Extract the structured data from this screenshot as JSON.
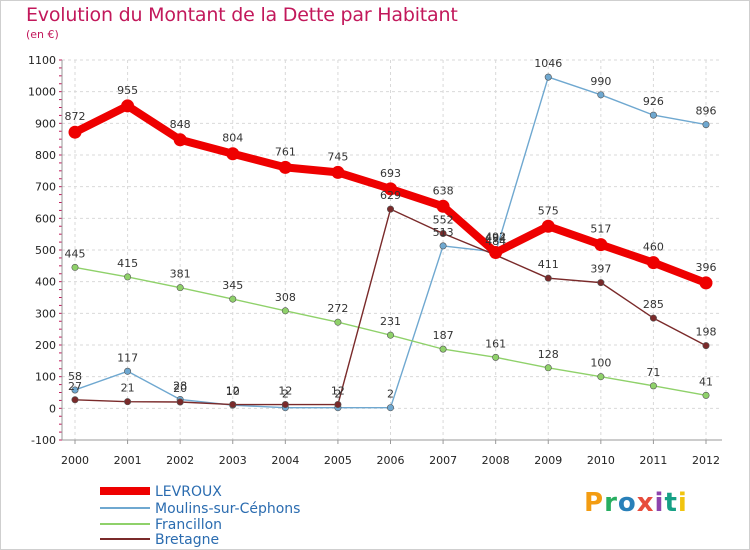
{
  "title": "Evolution du Montant de la Dette par Habitant",
  "subtitle": "(en €)",
  "brand": {
    "text": "Proxiti",
    "colors": [
      "#f39c12",
      "#27ae60",
      "#2980b9",
      "#e74c3c",
      "#8e44ad",
      "#16a085",
      "#f1c40f"
    ]
  },
  "chart_data": {
    "type": "line",
    "x": [
      "2000",
      "2001",
      "2002",
      "2003",
      "2004",
      "2005",
      "2006",
      "2007",
      "2008",
      "2009",
      "2010",
      "2011",
      "2012"
    ],
    "ylim": [
      -100,
      1100
    ],
    "yticks": [
      "-100",
      "0",
      "100",
      "200",
      "300",
      "400",
      "500",
      "600",
      "700",
      "800",
      "900",
      "1000",
      "1100"
    ],
    "grid": true,
    "legend_position": "bottom-left",
    "series": [
      {
        "name": "LEVROUX",
        "color": "#ee0000",
        "values": [
          872,
          955,
          848,
          804,
          761,
          745,
          693,
          638,
          492,
          575,
          517,
          460,
          396
        ],
        "labels": [
          "872",
          "955",
          "848",
          "804",
          "761",
          "745",
          "693",
          "638",
          "492",
          "575",
          "517",
          "460",
          "396"
        ]
      },
      {
        "name": "Moulins-sur-Céphons",
        "color": "#6fa8d0",
        "values": [
          58,
          117,
          28,
          10,
          2,
          2,
          2,
          513,
          494,
          1046,
          990,
          926,
          896
        ],
        "labels": [
          "58",
          "117",
          "28",
          "10",
          "2",
          "2",
          "2",
          "513",
          "494",
          "1046",
          "990",
          "926",
          "896"
        ]
      },
      {
        "name": "Francillon",
        "color": "#8fd16a",
        "values": [
          445,
          415,
          381,
          345,
          308,
          272,
          231,
          187,
          161,
          128,
          100,
          71,
          41
        ],
        "labels": [
          "445",
          "415",
          "381",
          "345",
          "308",
          "272",
          "231",
          "187",
          "161",
          "128",
          "100",
          "71",
          "41"
        ]
      },
      {
        "name": "Bretagne",
        "color": "#7a2a2a",
        "values": [
          27,
          21,
          20,
          12,
          12,
          12,
          629,
          552,
          484,
          411,
          397,
          285,
          198
        ],
        "labels": [
          "27",
          "21",
          "20",
          "12",
          "12",
          "12",
          "629",
          "552",
          "484",
          "411",
          "397",
          "285",
          "198"
        ]
      }
    ]
  }
}
